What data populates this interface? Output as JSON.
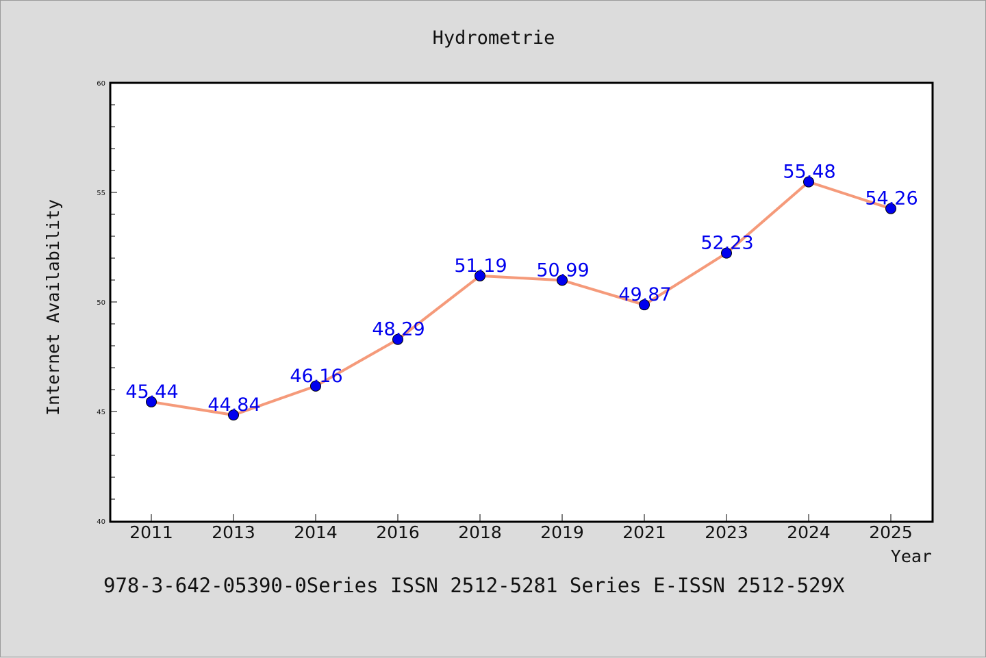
{
  "chart_data": {
    "type": "line",
    "title": "Hydrometrie",
    "xlabel": "Year",
    "ylabel": "Internet Availability",
    "categories": [
      "2011",
      "2013",
      "2014",
      "2016",
      "2018",
      "2019",
      "2021",
      "2023",
      "2024",
      "2025"
    ],
    "series": [
      {
        "values": [
          45.44,
          44.84,
          46.16,
          48.29,
          51.19,
          50.99,
          49.87,
          52.23,
          55.48,
          54.26
        ]
      }
    ],
    "data_labels": [
      "45.44",
      "44.84",
      "46.16",
      "48.29",
      "51.19",
      "50.99",
      "49.87",
      "52.23",
      "55.48",
      "54.26"
    ],
    "ylim": [
      40,
      60
    ],
    "yticks": [
      40,
      45,
      50,
      55,
      60
    ],
    "grid": false,
    "legend": "none",
    "colors": {
      "line": "#f59a7a",
      "marker": "#0000ee",
      "label": "#0000ee",
      "background": "#dcdcdc",
      "plot_area": "#ffffff"
    }
  },
  "footer_text": "978-3-642-05390-0Series ISSN 2512-5281 Series E-ISSN 2512-529X"
}
